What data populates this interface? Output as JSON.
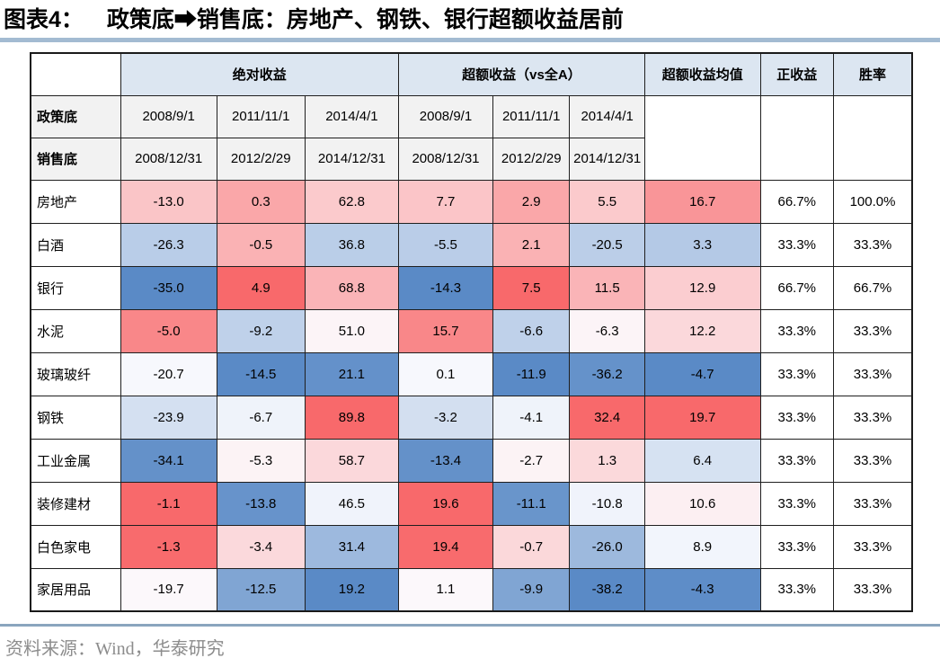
{
  "page": {
    "source_text": "资料来源：Wind，华泰研究"
  },
  "chart_data": {
    "type": "table",
    "figure_label": "图表4：",
    "title": "政策底➡销售底：房地产、钢铁、银行超额收益居前",
    "column_groups": {
      "absolute": "绝对收益",
      "excess": "超额收益（vs全A）",
      "excess_mean": "超额收益均值",
      "positive": "正收益",
      "win_rate": "胜率"
    },
    "row_headers": {
      "policy": "政策底",
      "sales": "销售底"
    },
    "policy_dates": [
      "2008/9/1",
      "2011/11/1",
      "2014/4/1",
      "2008/9/1",
      "2011/11/1",
      "2014/4/1"
    ],
    "sales_dates": [
      "2008/12/31",
      "2012/2/29",
      "2014/12/31",
      "2008/12/31",
      "2012/2/29",
      "2014/12/31"
    ],
    "rows": [
      {
        "label": "房地产",
        "values": [
          -13.0,
          0.3,
          62.8,
          7.7,
          2.9,
          5.5
        ],
        "mean": 16.7,
        "positive": "66.7%",
        "win_rate": "100.0%"
      },
      {
        "label": "白酒",
        "values": [
          -26.3,
          -0.5,
          36.8,
          -5.5,
          2.1,
          -20.5
        ],
        "mean": 3.3,
        "positive": "33.3%",
        "win_rate": "33.3%"
      },
      {
        "label": "银行",
        "values": [
          -35.0,
          4.9,
          68.8,
          -14.3,
          7.5,
          11.5
        ],
        "mean": 12.9,
        "positive": "66.7%",
        "win_rate": "66.7%"
      },
      {
        "label": "水泥",
        "values": [
          -5.0,
          -9.2,
          51.0,
          15.7,
          -6.6,
          -6.3
        ],
        "mean": 12.2,
        "positive": "33.3%",
        "win_rate": "33.3%"
      },
      {
        "label": "玻璃玻纤",
        "values": [
          -20.7,
          -14.5,
          21.1,
          0.1,
          -11.9,
          -36.2
        ],
        "mean": -4.7,
        "positive": "33.3%",
        "win_rate": "33.3%"
      },
      {
        "label": "钢铁",
        "values": [
          -23.9,
          -6.7,
          89.8,
          -3.2,
          -4.1,
          32.4
        ],
        "mean": 19.7,
        "positive": "33.3%",
        "win_rate": "33.3%"
      },
      {
        "label": "工业金属",
        "values": [
          -34.1,
          -5.3,
          58.7,
          -13.4,
          -2.7,
          1.3
        ],
        "mean": 6.4,
        "positive": "33.3%",
        "win_rate": "33.3%"
      },
      {
        "label": "装修建材",
        "values": [
          -1.1,
          -13.8,
          46.5,
          19.6,
          -11.1,
          -10.8
        ],
        "mean": 10.6,
        "positive": "33.3%",
        "win_rate": "33.3%"
      },
      {
        "label": "白色家电",
        "values": [
          -1.3,
          -3.4,
          31.4,
          19.4,
          -0.7,
          -26.0
        ],
        "mean": 8.9,
        "positive": "33.3%",
        "win_rate": "33.3%"
      },
      {
        "label": "家居用品",
        "values": [
          -19.7,
          -12.5,
          19.2,
          1.1,
          -9.9,
          -38.2
        ],
        "mean": -4.3,
        "positive": "33.3%",
        "win_rate": "33.3%"
      }
    ],
    "heatmap": {
      "scale": "per-column 3-color scale, min → median → max",
      "min_color": "#5A8AC6",
      "mid_color": "#FCFCFF",
      "max_color": "#F8696B"
    },
    "colors": {
      "header_fill": "#DCE6F1",
      "subheader_fill": "#F2F2F2",
      "title_rule": "#A3BBD2",
      "footer_rule": "#8AA5BE",
      "source_text": "#8C8C8C",
      "border": "#1F1F1F"
    }
  }
}
